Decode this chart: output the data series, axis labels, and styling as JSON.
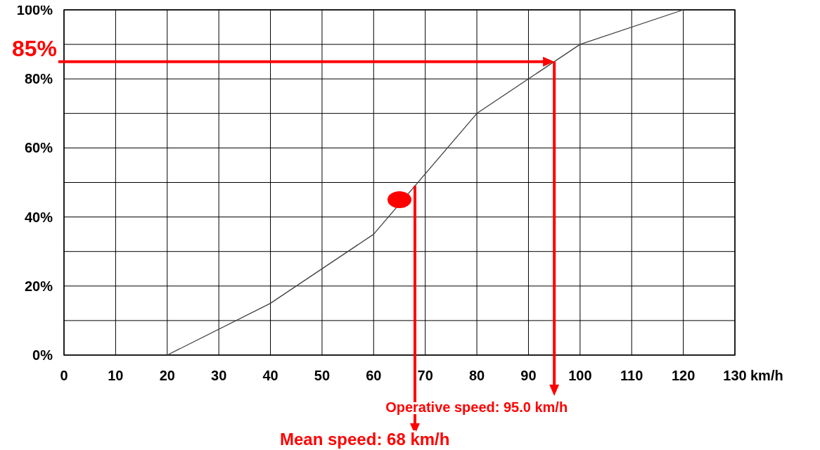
{
  "chart_data": {
    "type": "line",
    "xlabel": "km/h",
    "x": [
      20,
      40,
      60,
      80,
      100,
      120
    ],
    "series": [
      {
        "color": "#404040",
        "values": [
          0,
          15,
          35,
          70,
          90,
          100
        ]
      },
      {
        "type": "scatter",
        "color": "#ff0000",
        "marker": "circle",
        "x": [
          65
        ],
        "values": [
          45
        ]
      }
    ],
    "xlim": [
      0,
      130
    ],
    "xticks": [
      0,
      10,
      20,
      30,
      40,
      50,
      60,
      70,
      80,
      90,
      100,
      110,
      120,
      130
    ],
    "ylim": [
      0,
      100
    ],
    "yticks": [
      {
        "value": 0,
        "label": "0%"
      },
      {
        "value": 10,
        "label": null
      },
      {
        "value": 20,
        "label": "20%"
      },
      {
        "value": 30,
        "label": null
      },
      {
        "value": 40,
        "label": "40%"
      },
      {
        "value": 50,
        "label": null
      },
      {
        "value": 60,
        "label": "60%"
      },
      {
        "value": 70,
        "label": null
      },
      {
        "value": 80,
        "label": "80%"
      },
      {
        "value": 90,
        "label": null
      },
      {
        "value": 100,
        "label": "100%"
      }
    ],
    "grid": true,
    "line_style": "solid",
    "ref_lines": [
      {
        "axis": "y",
        "value": 85,
        "label": "85%",
        "color": "#ff0000"
      },
      {
        "axis": "x",
        "value": 95,
        "label": "Operative speed: 95.0 km/h",
        "color": "#ff0000"
      },
      {
        "axis": "x",
        "value": 68,
        "label": "Mean speed: 68 km/h",
        "color": "#ff0000"
      }
    ]
  }
}
